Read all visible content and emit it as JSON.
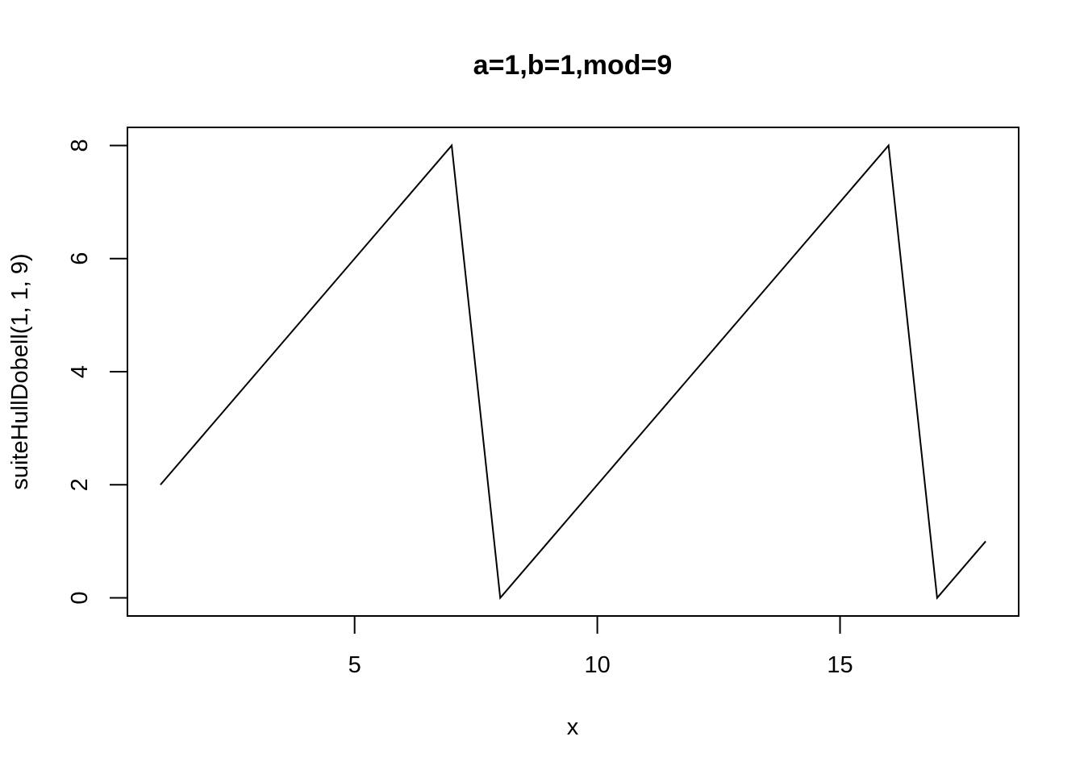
{
  "chart_data": {
    "type": "line",
    "title": "a=1,b=1,mod=9",
    "xlabel": "x",
    "ylabel": "suiteHullDobell(1, 1, 9)",
    "x": [
      1,
      2,
      3,
      4,
      5,
      6,
      7,
      8,
      9,
      10,
      11,
      12,
      13,
      14,
      15,
      16,
      17,
      18
    ],
    "series": [
      {
        "values": [
          2,
          3,
          4,
          5,
          6,
          7,
          8,
          0,
          1,
          2,
          3,
          4,
          5,
          6,
          7,
          8,
          0,
          1
        ]
      }
    ],
    "xlim": [
      0.32,
      18.68
    ],
    "ylim": [
      -0.32,
      8.32
    ],
    "xticks": [
      5,
      10,
      15
    ],
    "yticks": [
      0,
      2,
      4,
      6,
      8
    ],
    "xtick_labels": [
      "5",
      "10",
      "15"
    ],
    "ytick_labels": [
      "0",
      "2",
      "4",
      "6",
      "8"
    ],
    "grid": false,
    "line_color": "#000000"
  }
}
